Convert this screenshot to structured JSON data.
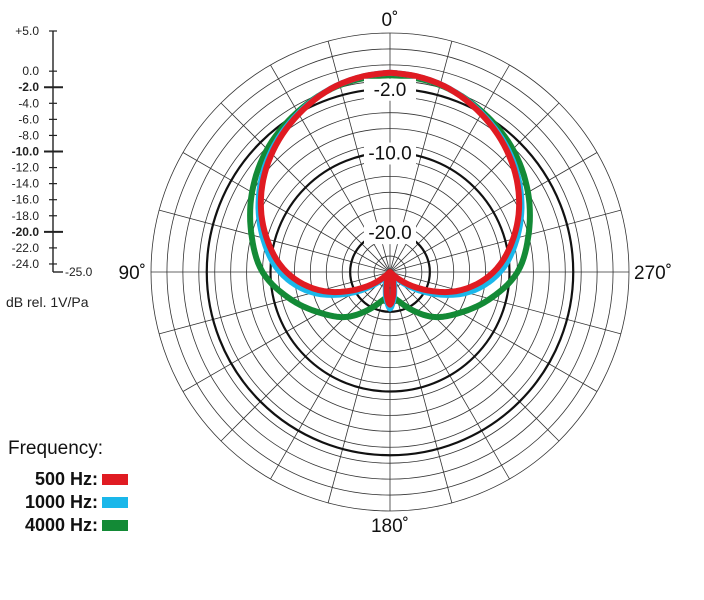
{
  "chart_data": {
    "type": "polar",
    "r_axis": {
      "unit_label": "dB rel. 1V/Pa",
      "range_db": [
        -25,
        5
      ],
      "ticks": [
        {
          "value": 5.0,
          "label": "+5.0"
        },
        {
          "value": 0.0,
          "label": "0.0"
        },
        {
          "value": -2.0,
          "label": "-2.0",
          "major": true
        },
        {
          "value": -4.0,
          "label": "-4.0"
        },
        {
          "value": -6.0,
          "label": "-6.0"
        },
        {
          "value": -8.0,
          "label": "-8.0"
        },
        {
          "value": -10.0,
          "label": "-10.0",
          "major": true
        },
        {
          "value": -12.0,
          "label": "-12.0"
        },
        {
          "value": -14.0,
          "label": "-14.0"
        },
        {
          "value": -16.0,
          "label": "-16.0"
        },
        {
          "value": -18.0,
          "label": "-18.0"
        },
        {
          "value": -20.0,
          "label": "-20.0",
          "major": true
        },
        {
          "value": -22.0,
          "label": "-22.0"
        },
        {
          "value": -24.0,
          "label": "-24.0"
        },
        {
          "value": -25.0,
          "label": "-25.0"
        }
      ],
      "ring_labels": [
        "-2.0",
        "-10.0",
        "-20.0"
      ]
    },
    "angle_axis": {
      "labels": [
        {
          "deg": 0,
          "label": "0˚"
        },
        {
          "deg": 90,
          "label": "90˚"
        },
        {
          "deg": 180,
          "label": "180˚"
        },
        {
          "deg": 270,
          "label": "270˚"
        }
      ],
      "spoke_step_deg": 15
    },
    "legend": {
      "title": "Frequency:",
      "placement": "bottom-left"
    },
    "series": [
      {
        "name": "4000 Hz:",
        "color": "#138a36",
        "angles_deg": [
          0,
          15,
          30,
          45,
          60,
          75,
          90,
          105,
          120,
          135,
          150,
          165,
          175,
          180
        ],
        "values_db": [
          -0.3,
          -0.7,
          -1.8,
          -3.2,
          -5.0,
          -7.0,
          -9.0,
          -12.0,
          -14.8,
          -17.0,
          -19.5,
          -21.3,
          -21.6,
          -20.7
        ]
      },
      {
        "name": "1000 Hz:",
        "color": "#1ab7ea",
        "angles_deg": [
          0,
          15,
          30,
          45,
          60,
          75,
          90,
          105,
          120,
          135,
          150,
          165,
          175,
          180
        ],
        "values_db": [
          0.0,
          -0.6,
          -2.0,
          -3.8,
          -6.0,
          -8.5,
          -11.2,
          -15.0,
          -20.0,
          -24.0,
          -24.3,
          -23.0,
          -21.2,
          -20.4
        ]
      },
      {
        "name": "500 Hz:",
        "color": "#e01b22",
        "angles_deg": [
          0,
          15,
          30,
          45,
          60,
          75,
          90,
          105,
          120,
          135,
          150,
          165,
          175,
          180
        ],
        "values_db": [
          0.0,
          -0.6,
          -2.1,
          -4.0,
          -6.3,
          -9.0,
          -12.0,
          -16.0,
          -21.0,
          -24.8,
          -24.9,
          -23.5,
          -21.6,
          -20.9
        ]
      }
    ]
  }
}
